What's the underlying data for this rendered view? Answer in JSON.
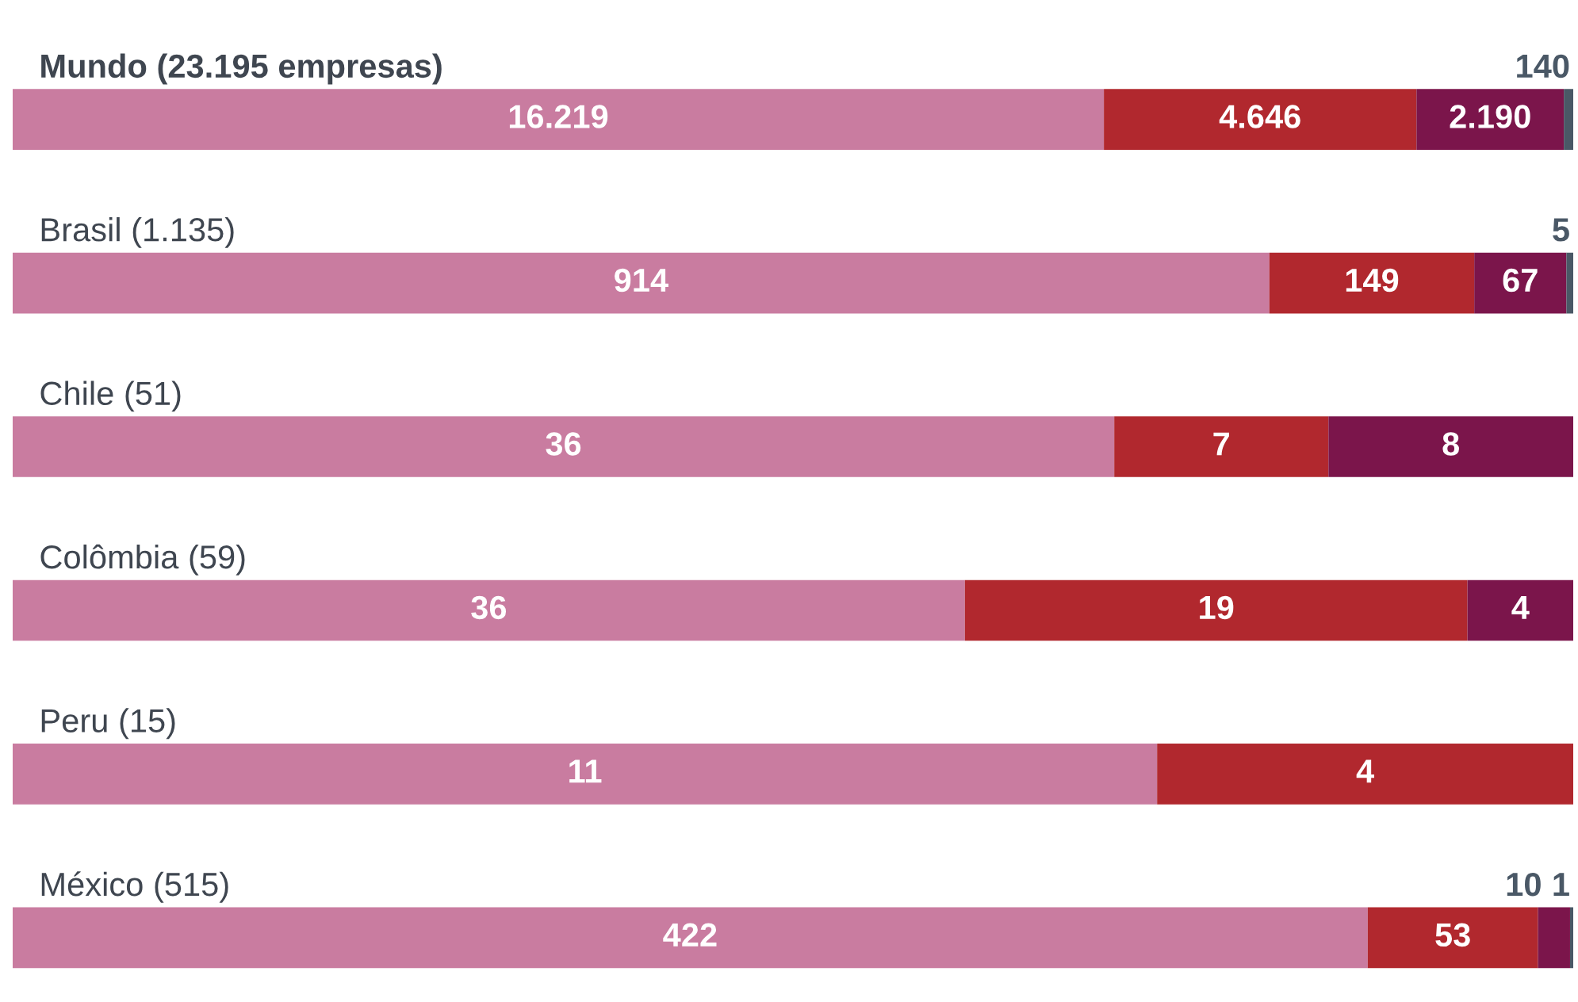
{
  "chart_data": [
    {
      "type": "bar",
      "orientation": "horizontal",
      "stacked": true,
      "tick_labels": false,
      "categories": [
        "Mundo (23.195 empresas)"
      ],
      "series": [
        {
          "color": "#c97ca0",
          "values": [
            16219
          ],
          "value_labels": [
            "16.219"
          ]
        },
        {
          "color": "#b1282e",
          "values": [
            4646
          ],
          "value_labels": [
            "4.646"
          ]
        },
        {
          "color": "#7b154b",
          "values": [
            2190
          ],
          "value_labels": [
            "2.190"
          ]
        },
        {
          "color": "#4a5866",
          "values": [
            140
          ],
          "value_labels": [
            "140"
          ]
        }
      ]
    },
    {
      "type": "bar",
      "orientation": "horizontal",
      "stacked": true,
      "data_labels": true,
      "tick_labels": false,
      "categories": [
        "Brasil (1.135)"
      ],
      "series": [
        {
          "color": "#c97ca0",
          "values": [
            914
          ]
        },
        {
          "color": "#b1282e",
          "values": [
            149
          ]
        },
        {
          "color": "#7b154b",
          "values": [
            67
          ]
        },
        {
          "color": "#4a5866",
          "values": [
            5
          ]
        }
      ]
    },
    {
      "type": "bar",
      "orientation": "horizontal",
      "stacked": true,
      "data_labels": true,
      "tick_labels": false,
      "categories": [
        "Chile (51)"
      ],
      "series": [
        {
          "color": "#c97ca0",
          "values": [
            36
          ]
        },
        {
          "color": "#b1282e",
          "values": [
            7
          ]
        },
        {
          "color": "#7b154b",
          "values": [
            8
          ]
        }
      ]
    },
    {
      "type": "bar",
      "orientation": "horizontal",
      "stacked": true,
      "data_labels": true,
      "tick_labels": false,
      "categories": [
        "Colômbia (59)"
      ],
      "series": [
        {
          "color": "#c97ca0",
          "values": [
            36
          ]
        },
        {
          "color": "#b1282e",
          "values": [
            19
          ]
        },
        {
          "color": "#7b154b",
          "values": [
            4
          ]
        }
      ]
    },
    {
      "type": "bar",
      "orientation": "horizontal",
      "stacked": true,
      "data_labels": true,
      "tick_labels": false,
      "categories": [
        "Peru (15)"
      ],
      "series": [
        {
          "color": "#c97ca0",
          "values": [
            11
          ]
        },
        {
          "color": "#b1282e",
          "values": [
            4
          ]
        }
      ]
    },
    {
      "type": "bar",
      "orientation": "horizontal",
      "stacked": true,
      "data_labels": true,
      "tick_labels": false,
      "categories": [
        "México (515)"
      ],
      "series": [
        {
          "color": "#c97ca0",
          "values": [
            422
          ]
        },
        {
          "color": "#b1282e",
          "values": [
            53
          ]
        },
        {
          "color": "#7b154b",
          "values": [
            10
          ]
        },
        {
          "color": "#4a5866",
          "values": [
            1
          ]
        }
      ]
    }
  ]
}
